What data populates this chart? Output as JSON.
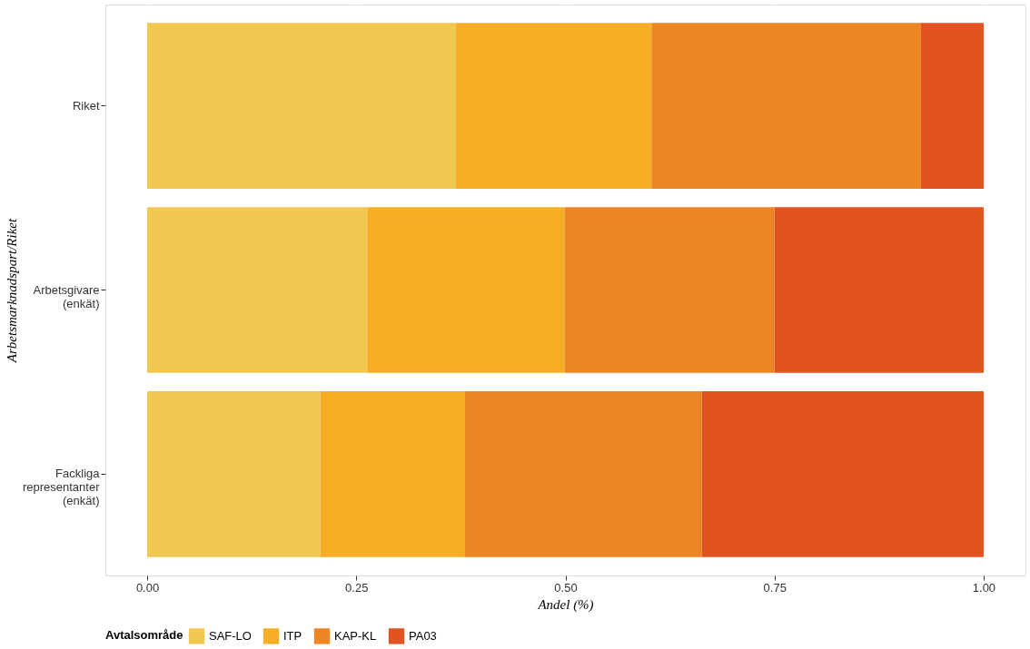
{
  "chart_data": {
    "type": "bar",
    "orientation": "horizontal",
    "stacked": true,
    "categories": [
      "Riket",
      "Arbetsgivare\n(enkät)",
      "Fackliga\nrepresentanter\n(enkät)"
    ],
    "series": [
      {
        "name": "SAF-LO",
        "color": "#f0c850",
        "values": [
          0.369,
          0.263,
          0.207
        ]
      },
      {
        "name": "ITP",
        "color": "#f5ae25",
        "values": [
          0.234,
          0.236,
          0.173
        ]
      },
      {
        "name": "KAP-KL",
        "color": "#ec8522",
        "values": [
          0.322,
          0.251,
          0.283
        ]
      },
      {
        "name": "PA03",
        "color": "#e25322",
        "values": [
          0.075,
          0.25,
          0.337
        ]
      }
    ],
    "xlabel": "Andel (%)",
    "ylabel": "Arbetsmarknadspart/Riket",
    "legend_title": "Avtalsområde",
    "xlim": [
      -0.05,
      1.05
    ],
    "xticks": [
      {
        "value": 0,
        "label": "0.00"
      },
      {
        "value": 0.25,
        "label": "0.25"
      },
      {
        "value": 0.5,
        "label": "0.50"
      },
      {
        "value": 0.75,
        "label": "0.75"
      },
      {
        "value": 1,
        "label": "1.00"
      }
    ],
    "grid": true,
    "legend": "bottom"
  }
}
